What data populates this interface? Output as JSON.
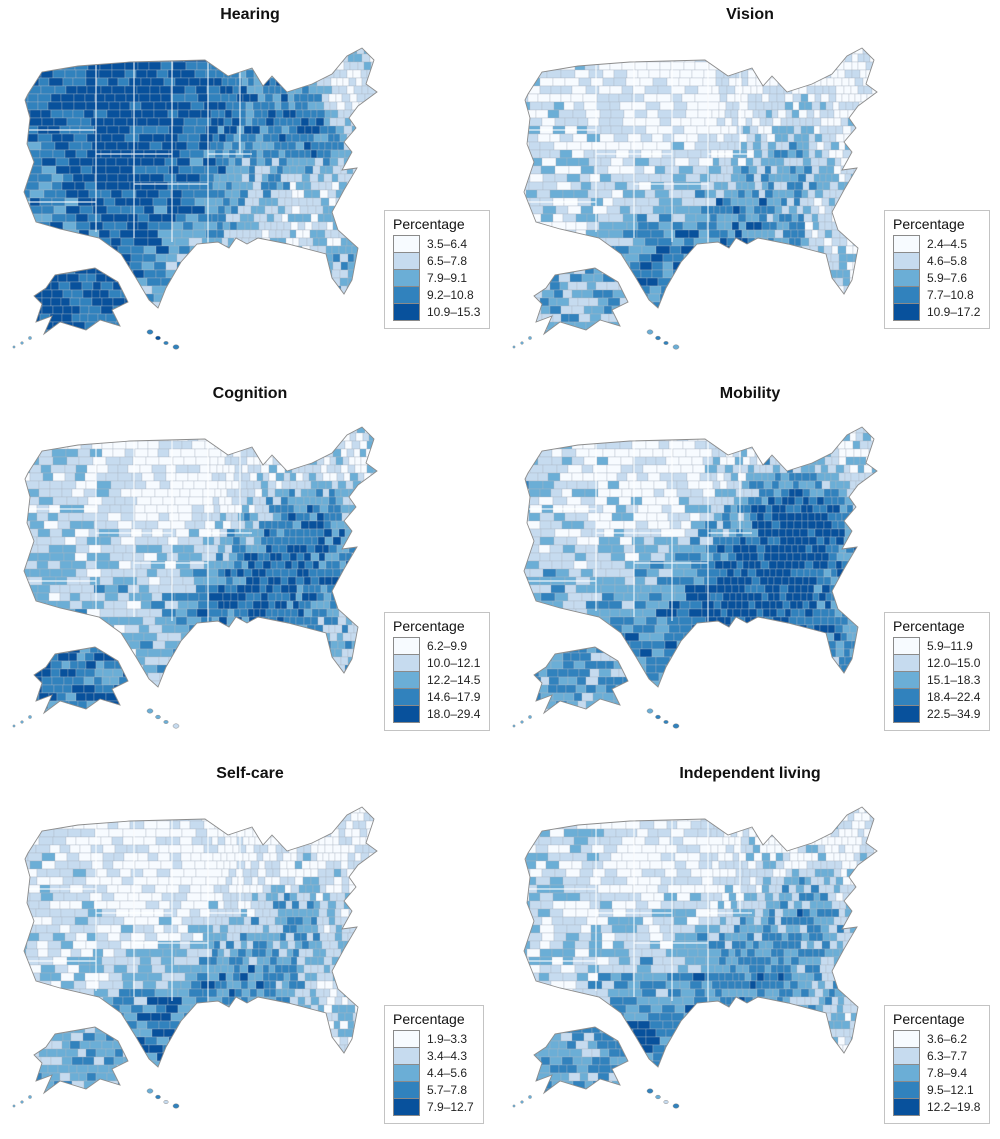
{
  "legend_title": "Percentage",
  "palette": {
    "classes": [
      "#f7fbff",
      "#c6dbef",
      "#6baed6",
      "#3182bd",
      "#08519c"
    ],
    "county_border": "#a9b6c2",
    "state_border": "#ffffff",
    "outline": "#8c8c8c"
  },
  "panels": [
    {
      "title": "Hearing",
      "legend": [
        "3.5–6.4",
        "6.5–7.8",
        "7.9–9.1",
        "9.2–10.8",
        "10.9–15.3"
      ]
    },
    {
      "title": "Vision",
      "legend": [
        "2.4–4.5",
        "4.6–5.8",
        "5.9–7.6",
        "7.7–10.8",
        "10.9–17.2"
      ]
    },
    {
      "title": "Cognition",
      "legend": [
        "6.2–9.9",
        "10.0–12.1",
        "12.2–14.5",
        "14.6–17.9",
        "18.0–29.4"
      ]
    },
    {
      "title": "Mobility",
      "legend": [
        "5.9–11.9",
        "12.0–15.0",
        "15.1–18.3",
        "18.4–22.4",
        "22.5–34.9"
      ]
    },
    {
      "title": "Self-care",
      "legend": [
        "1.9–3.3",
        "3.4–4.3",
        "4.4–5.6",
        "5.7–7.8",
        "7.9–12.7"
      ]
    },
    {
      "title": "Independent living",
      "legend": [
        "3.6–6.2",
        "6.3–7.7",
        "7.8–9.4",
        "9.5–12.1",
        "12.2–19.8"
      ]
    }
  ]
}
